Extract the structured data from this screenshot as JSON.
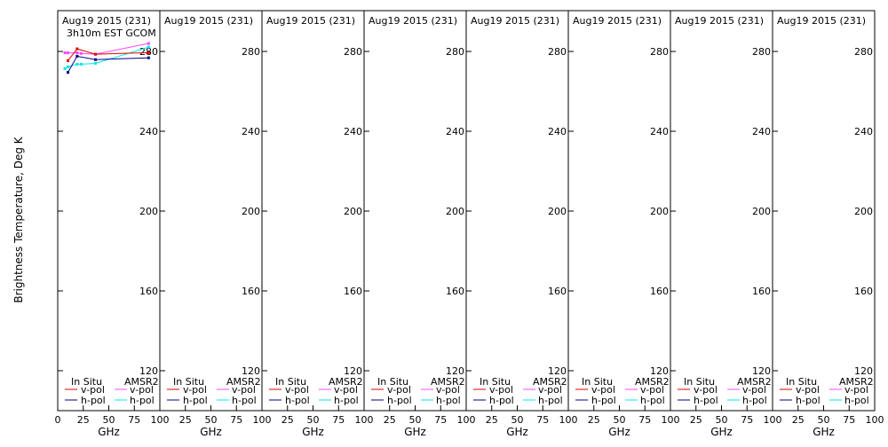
{
  "figure": {
    "ylabel": "Brightness Temperature, Deg K",
    "xlabel": "GHz",
    "panel_title": "Aug19 2015 (231)",
    "annotation": "3h10m EST GCOM",
    "legend": {
      "insitu_header": "In Situ",
      "amsr2_header": "AMSR2",
      "vpol": "v-pol",
      "hpol": "h-pol"
    }
  },
  "chart_data": {
    "type": "line",
    "panel_count": 8,
    "xlim": [
      0,
      100
    ],
    "ylim": [
      110,
      297
    ],
    "x_ticks": [
      0,
      25,
      50,
      75,
      100
    ],
    "x_tick_labels_first": [
      "0",
      "25",
      "50",
      "75",
      "100"
    ],
    "x_tick_labels_rest": [
      "25",
      "50",
      "75",
      "100"
    ],
    "y_ticks": [
      120,
      160,
      200,
      240,
      280
    ],
    "grid": false,
    "colors": {
      "insitu_v": "#e00000",
      "insitu_h": "#00008b",
      "amsr2_v": "#ff44ff",
      "amsr2_h": "#00e8e8"
    },
    "panel1_series": [
      {
        "key": "insitu_v",
        "x": [
          10,
          19,
          37,
          89
        ],
        "y": [
          275.4,
          281.3,
          278.6,
          279.4
        ]
      },
      {
        "key": "insitu_h",
        "x": [
          10,
          19,
          37,
          89
        ],
        "y": [
          269.5,
          277.6,
          275.9,
          276.8
        ]
      },
      {
        "key": "amsr2_v",
        "x": [
          7,
          10,
          19,
          23,
          37,
          89
        ],
        "y": [
          279.3,
          279.3,
          279.3,
          279.0,
          278.6,
          284.0
        ]
      },
      {
        "key": "amsr2_h",
        "x": [
          7,
          10,
          19,
          23,
          37,
          89
        ],
        "y": [
          271.4,
          272.3,
          273.6,
          273.6,
          274.0,
          282.2
        ]
      }
    ]
  }
}
